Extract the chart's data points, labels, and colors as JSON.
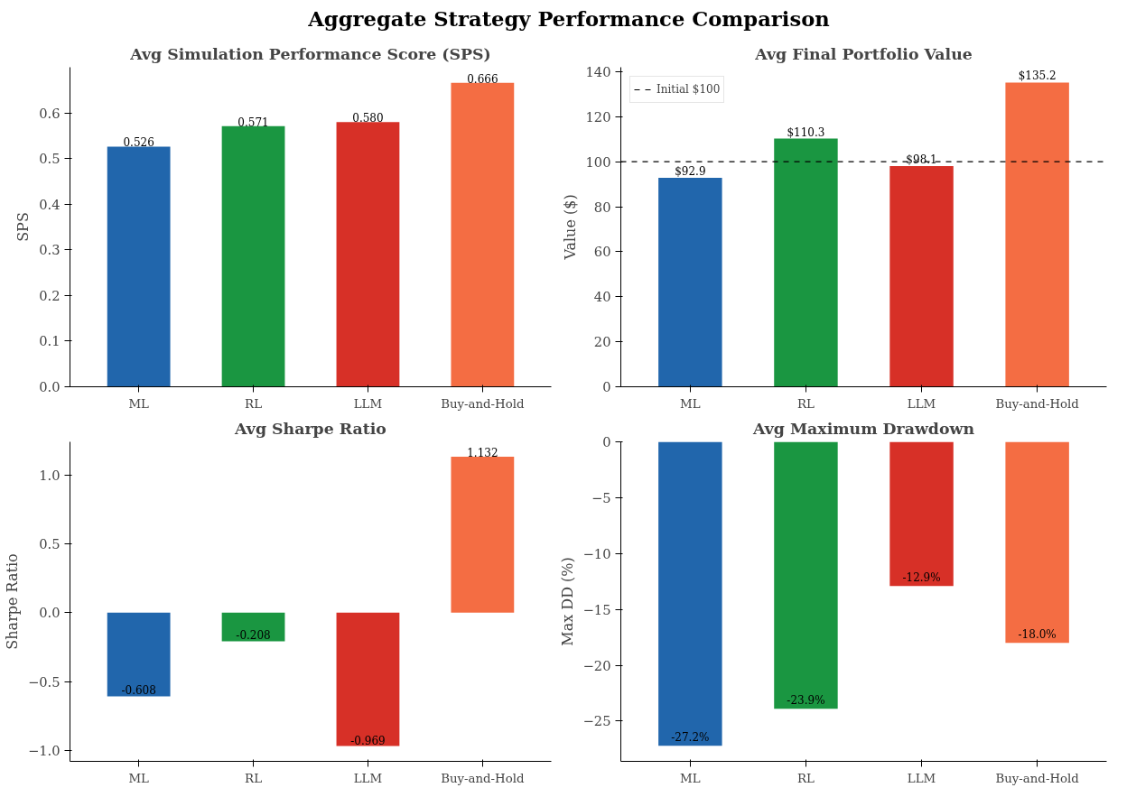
{
  "chart_data": [
    {
      "type": "other",
      "title": "Aggregate Strategy Performance Comparison"
    },
    {
      "type": "bar",
      "title": "Avg Simulation Performance Score (SPS)",
      "ylabel": "SPS",
      "categories": [
        "ML",
        "RL",
        "LLM",
        "Buy-and-Hold"
      ],
      "values": [
        0.526,
        0.571,
        0.58,
        0.666
      ],
      "colors": [
        "#2166ac",
        "#1a9641",
        "#d73027",
        "#f46d43"
      ],
      "value_labels": [
        "0.526",
        "0.571",
        "0.580",
        "0.666"
      ],
      "ylim": [
        0,
        0.7
      ],
      "yticks": [
        {
          "value": 0,
          "label": "0.0"
        },
        0.1,
        0.2,
        0.3,
        0.4,
        0.5,
        0.6
      ],
      "grid": false
    },
    {
      "type": "bar",
      "title": "Avg Final Portfolio Value",
      "ylabel": "Value ($)",
      "categories": [
        "ML",
        "RL",
        "LLM",
        "Buy-and-Hold"
      ],
      "values": [
        92.9,
        110.3,
        98.1,
        135.2
      ],
      "colors": [
        "#2166ac",
        "#1a9641",
        "#d73027",
        "#f46d43"
      ],
      "value_labels": [
        "$92.9",
        "$110.3",
        "$98.1",
        "$135.2"
      ],
      "ylim": [
        0,
        142
      ],
      "yticks": [
        0,
        20,
        40,
        60,
        80,
        100,
        120,
        140
      ],
      "ref_lines": [
        {
          "axis": "y",
          "value": 100,
          "label": "Initial $100",
          "color": "#000000",
          "line_style": "dashed"
        }
      ],
      "grid": false,
      "legend": "top left"
    },
    {
      "type": "bar",
      "title": "Avg Sharpe Ratio",
      "ylabel": "Sharpe Ratio",
      "categories": [
        "ML",
        "RL",
        "LLM",
        "Buy-and-Hold"
      ],
      "values": [
        -0.608,
        -0.208,
        -0.969,
        1.132
      ],
      "colors": [
        "#2166ac",
        "#1a9641",
        "#d73027",
        "#f46d43"
      ],
      "value_labels": [
        "-0.608",
        "-0.208",
        "-0.969",
        "1.132"
      ],
      "ylim": [
        -1.08,
        1.24
      ],
      "yticks": [
        {
          "value": -1,
          "label": "−1.0"
        },
        {
          "value": -0.5,
          "label": "−0.5"
        },
        {
          "value": 0,
          "label": "0.0"
        },
        0.5,
        {
          "value": 1,
          "label": "1.0"
        }
      ],
      "grid": false
    },
    {
      "type": "bar",
      "title": "Avg Maximum Drawdown",
      "ylabel": "Max DD (%)",
      "categories": [
        "ML",
        "RL",
        "LLM",
        "Buy-and-Hold"
      ],
      "values": [
        -27.2,
        -23.9,
        -12.9,
        -18.0
      ],
      "colors": [
        "#2166ac",
        "#1a9641",
        "#d73027",
        "#f46d43"
      ],
      "value_labels": [
        "-27.2%",
        "-23.9%",
        "-12.9%",
        "-18.0%"
      ],
      "ylim": [
        -28.6,
        0
      ],
      "yticks": [
        {
          "value": -25,
          "label": "−25"
        },
        {
          "value": -20,
          "label": "−20"
        },
        {
          "value": -15,
          "label": "−15"
        },
        {
          "value": -10,
          "label": "−10"
        },
        {
          "value": -5,
          "label": "−5"
        },
        0
      ],
      "grid": false
    }
  ]
}
